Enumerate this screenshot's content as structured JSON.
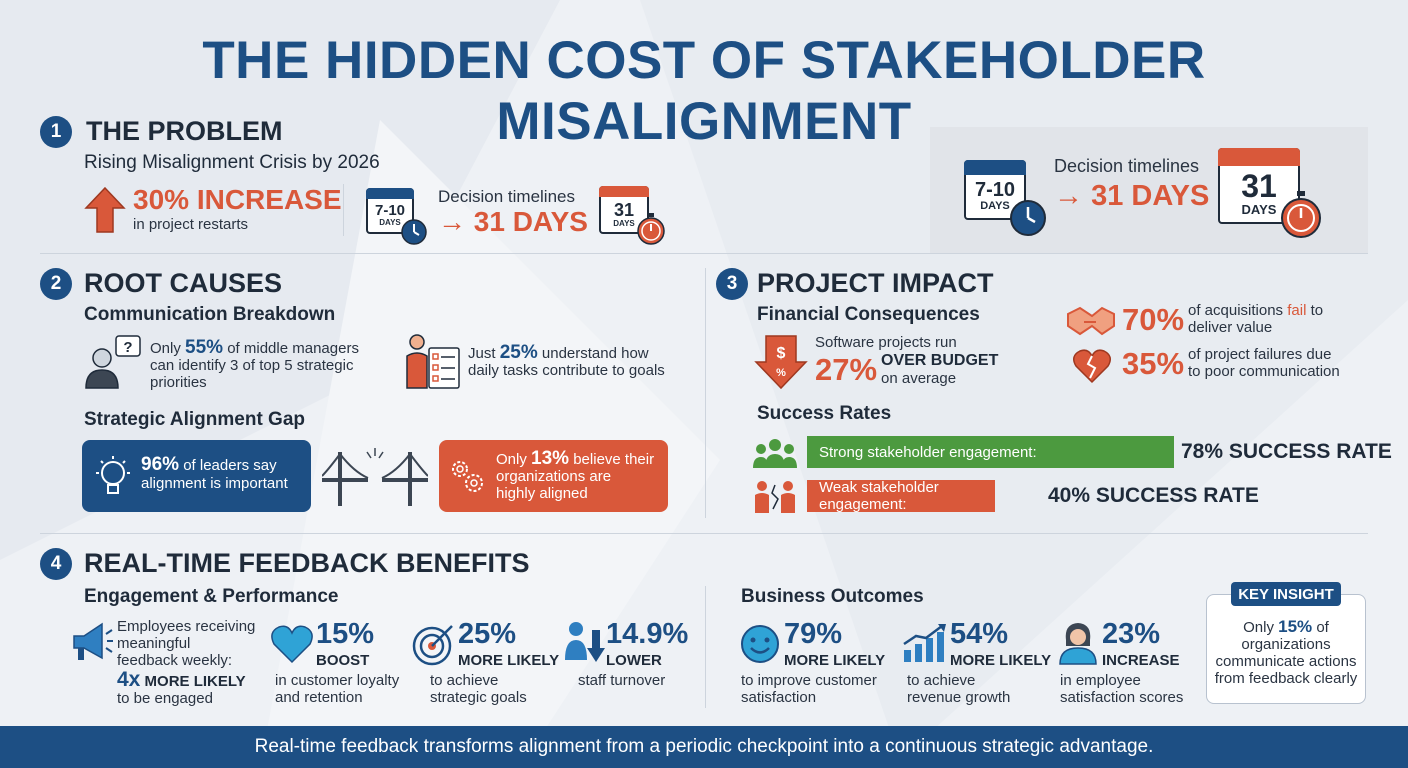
{
  "page": {
    "title": "THE HIDDEN COST OF STAKEHOLDER MISALIGNMENT",
    "footer": "Real-time feedback transforms alignment from a periodic checkpoint into a continuous strategic advantage."
  },
  "colors": {
    "navy": "#1d4f84",
    "red": "#d9583a",
    "green": "#4c9a3f",
    "dark": "#1f2b3a"
  },
  "section1": {
    "num": "1",
    "title": "THE PROBLEM",
    "subtitle": "Rising Misalignment Crisis by 2026",
    "stat_value": "30% INCREASE",
    "stat_text": "in project restarts",
    "timeline_label": "Decision timelines",
    "timeline_value": "31 DAYS",
    "cal_from_value": "7-10",
    "cal_from_unit": "DAYS",
    "cal_to_value": "31",
    "cal_to_unit": "DAYS",
    "arrow": "→"
  },
  "callout": {
    "label": "Decision timelines",
    "value": "31 DAYS",
    "cal_from_value": "7-10",
    "cal_from_unit": "DAYS",
    "cal_to_value": "31",
    "cal_to_unit": "DAYS",
    "arrow": "→"
  },
  "section2": {
    "num": "2",
    "title": "ROOT CAUSES",
    "subtitle": "Communication Breakdown",
    "s1_pre": "Only ",
    "s1_value": "55%",
    "s1_post": " of middle managers",
    "s1_line2": "can identify 3 of top 5 strategic",
    "s1_line3": "priorities",
    "s2_pre": "Just ",
    "s2_value": "25%",
    "s2_post": " understand how",
    "s2_line2": "daily tasks contribute to goals",
    "gap_title": "Strategic Alignment Gap",
    "gap_left_value": "96%",
    "gap_left_post": " of leaders say",
    "gap_left_line2": "alignment is important",
    "gap_right_pre": "Only ",
    "gap_right_value": "13%",
    "gap_right_post": " believe their",
    "gap_right_line2": "organizations are",
    "gap_right_line3": "highly aligned"
  },
  "section3": {
    "num": "3",
    "title": "PROJECT IMPACT",
    "subtitle": "Financial Consequences",
    "sw_line1": "Software projects run",
    "sw_value": "27%",
    "sw_emph": "OVER BUDGET",
    "sw_tail": "on average",
    "acq_value": "70%",
    "acq_pre": "of acquisitions ",
    "acq_fail": "fail",
    "acq_post": " to",
    "acq_line2": "deliver value",
    "fail_value": "35%",
    "fail_line1": "of project failures due",
    "fail_line2": "to poor communication",
    "success_title": "Success Rates",
    "strong_label": "Strong stakeholder engagement:",
    "strong_value": "78% SUCCESS RATE",
    "weak_label": "Weak stakeholder engagement:",
    "weak_value": "40% SUCCESS RATE",
    "strong_rate": 78,
    "weak_rate": 40
  },
  "section4": {
    "num": "4",
    "title": "REAL-TIME FEEDBACK BENEFITS",
    "eng_title": "Engagement & Performance",
    "emp_line1": "Employees receiving",
    "emp_line2": "meaningful",
    "emp_line3": "feedback weekly:",
    "emp_value": "4x",
    "emp_emph": " MORE LIKELY",
    "emp_tail": "to be engaged",
    "b1_value": "15%",
    "b1_emph": "BOOST",
    "b1_line1": "in customer loyalty",
    "b1_line2": "and retention",
    "b2_value": "25%",
    "b2_emph": "MORE LIKELY",
    "b2_line1": "to achieve",
    "b2_line2": "strategic goals",
    "b3_value": "14.9%",
    "b3_emph": "LOWER",
    "b3_line1": "staff turnover",
    "biz_title": "Business Outcomes",
    "o1_value": "79%",
    "o1_emph": "MORE LIKELY",
    "o1_line1": "to improve customer",
    "o1_line2": "satisfaction",
    "o2_value": "54%",
    "o2_emph": "MORE LIKELY",
    "o2_line1": "to achieve",
    "o2_line2": "revenue growth",
    "o3_value": "23%",
    "o3_emph": "INCREASE",
    "o3_line1": "in employee",
    "o3_line2": "satisfaction scores",
    "insight_label": "KEY INSIGHT",
    "insight_pre": "Only ",
    "insight_value": "15%",
    "insight_post": " of",
    "insight_line2": "organizations",
    "insight_line3": "communicate actions",
    "insight_line4": "from feedback clearly"
  },
  "icons": [
    "arrow-up-icon",
    "calendar-icon",
    "clock-icon",
    "stopwatch-icon",
    "manager-question-icon",
    "checklist-person-icon",
    "lightbulb-icon",
    "broken-bridge-icon",
    "gears-icon",
    "dollar-down-icon",
    "handshake-icon",
    "broken-heart-icon",
    "group-icon",
    "conflict-icon",
    "megaphone-icon",
    "heart-icon",
    "target-icon",
    "person-down-icon",
    "smile-icon",
    "growth-chart-icon",
    "employee-icon"
  ]
}
